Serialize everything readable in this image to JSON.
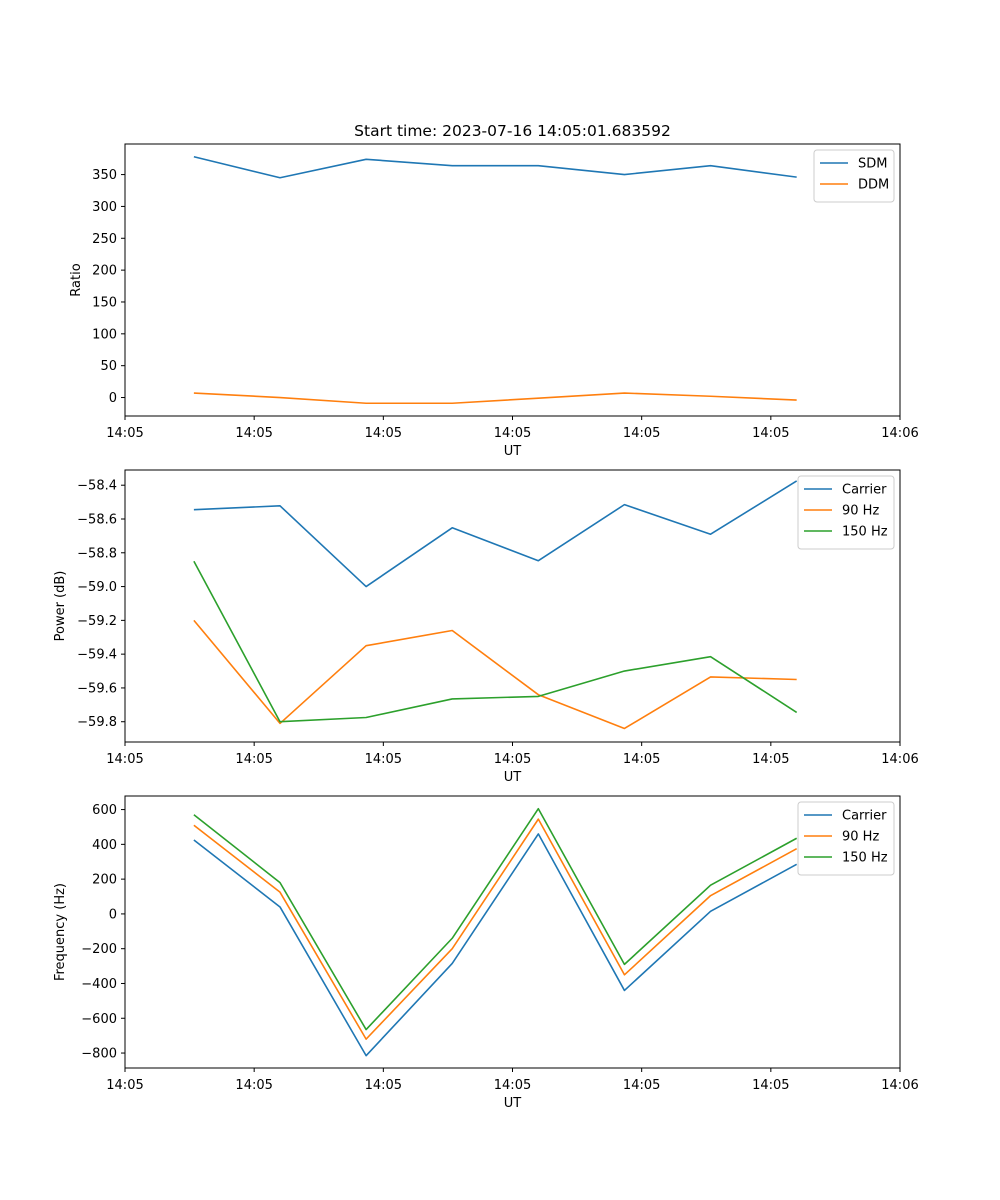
{
  "chart_data": [
    {
      "type": "line",
      "title": "Start time: 2023-07-16 14:05:01.683592",
      "xlabel": "UT",
      "ylabel": "Ratio",
      "x": [
        1,
        2,
        3,
        4,
        5,
        6,
        7,
        8
      ],
      "xlim": [
        0.2,
        9.2
      ],
      "xticks": [
        0.2,
        1.7,
        3.2,
        4.7,
        6.2,
        7.7,
        9.2
      ],
      "xtick_labels": [
        "14:05",
        "14:05",
        "14:05",
        "14:05",
        "14:05",
        "14:05",
        "14:06"
      ],
      "ylim": [
        -29,
        398
      ],
      "yticks": [
        0,
        50,
        100,
        150,
        200,
        250,
        300,
        350
      ],
      "ytick_labels": [
        "0",
        "50",
        "100",
        "150",
        "200",
        "250",
        "300",
        "350"
      ],
      "legend_position": "top-right",
      "series": [
        {
          "name": "SDM",
          "color": "#1f77b4",
          "values": [
            378,
            345,
            374,
            364,
            364,
            350,
            364,
            346
          ]
        },
        {
          "name": "DDM",
          "color": "#ff7f0e",
          "values": [
            7,
            0,
            -9,
            -9,
            -1,
            7,
            2,
            -4
          ]
        }
      ]
    },
    {
      "type": "line",
      "title": "",
      "xlabel": "UT",
      "ylabel": "Power (dB)",
      "x": [
        1,
        2,
        3,
        4,
        5,
        6,
        7,
        8
      ],
      "xlim": [
        0.2,
        9.2
      ],
      "xticks": [
        0.2,
        1.7,
        3.2,
        4.7,
        6.2,
        7.7,
        9.2
      ],
      "xtick_labels": [
        "14:05",
        "14:05",
        "14:05",
        "14:05",
        "14:05",
        "14:05",
        "14:06"
      ],
      "ylim": [
        -59.92,
        -58.31
      ],
      "yticks": [
        -59.8,
        -59.6,
        -59.4,
        -59.2,
        -59.0,
        -58.8,
        -58.6,
        -58.4
      ],
      "ytick_labels": [
        "−59.8",
        "−59.6",
        "−59.4",
        "−59.2",
        "−59.0",
        "−58.8",
        "−58.6",
        "−58.4"
      ],
      "legend_position": "top-right",
      "series": [
        {
          "name": "Carrier",
          "color": "#1f77b4",
          "values": [
            -58.545,
            -58.522,
            -59.0,
            -58.652,
            -58.847,
            -58.515,
            -58.69,
            -58.375
          ]
        },
        {
          "name": "90 Hz",
          "color": "#ff7f0e",
          "values": [
            -59.2,
            -59.81,
            -59.35,
            -59.26,
            -59.64,
            -59.84,
            -59.535,
            -59.55
          ]
        },
        {
          "name": "150 Hz",
          "color": "#2ca02c",
          "values": [
            -58.85,
            -59.8,
            -59.775,
            -59.665,
            -59.65,
            -59.5,
            -59.415,
            -59.745
          ]
        }
      ]
    },
    {
      "type": "line",
      "title": "",
      "xlabel": "UT",
      "ylabel": "Frequency (Hz)",
      "x": [
        1,
        2,
        3,
        4,
        5,
        6,
        7,
        8
      ],
      "xlim": [
        0.2,
        9.2
      ],
      "xticks": [
        0.2,
        1.7,
        3.2,
        4.7,
        6.2,
        7.7,
        9.2
      ],
      "xtick_labels": [
        "14:05",
        "14:05",
        "14:05",
        "14:05",
        "14:05",
        "14:05",
        "14:06"
      ],
      "ylim": [
        -886,
        678
      ],
      "yticks": [
        -800,
        -600,
        -400,
        -200,
        0,
        200,
        400,
        600
      ],
      "ytick_labels": [
        "−800",
        "−600",
        "−400",
        "−200",
        "0",
        "200",
        "400",
        "600"
      ],
      "legend_position": "top-right",
      "series": [
        {
          "name": "Carrier",
          "color": "#1f77b4",
          "values": [
            425,
            40,
            -815,
            -285,
            460,
            -440,
            15,
            285
          ]
        },
        {
          "name": "90 Hz",
          "color": "#ff7f0e",
          "values": [
            510,
            125,
            -720,
            -200,
            545,
            -350,
            105,
            375
          ]
        },
        {
          "name": "150 Hz",
          "color": "#2ca02c",
          "values": [
            570,
            180,
            -665,
            -140,
            605,
            -290,
            165,
            435
          ]
        }
      ]
    }
  ]
}
